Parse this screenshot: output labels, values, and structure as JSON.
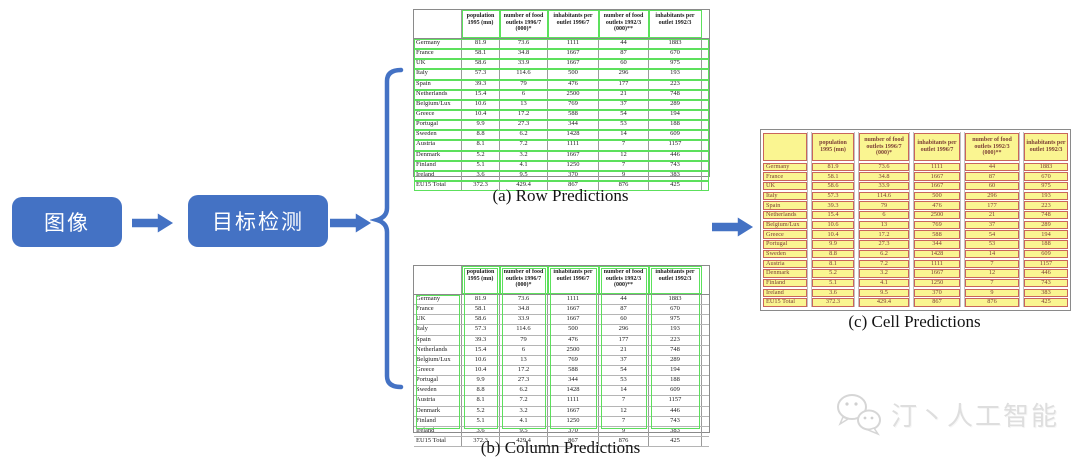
{
  "pipeline": {
    "input_label": "图像",
    "detector_label": "目标检测"
  },
  "tables": {
    "headers": [
      "",
      "population 1995 (mn)",
      "number of food outlets 1996/7 (000)*",
      "inhabitants per outlet 1996/7",
      "number of food outlets 1992/3 (000)**",
      "inhabitants per outlet 1992/3"
    ],
    "rows": [
      [
        "Germany",
        "81.9",
        "73.6",
        "1111",
        "44",
        "1883"
      ],
      [
        "France",
        "58.1",
        "34.8",
        "1667",
        "87",
        "670"
      ],
      [
        "UK",
        "58.6",
        "33.9",
        "1667",
        "60",
        "975"
      ],
      [
        "Italy",
        "57.3",
        "114.6",
        "500",
        "296",
        "193"
      ],
      [
        "Spain",
        "39.3",
        "79",
        "476",
        "177",
        "223"
      ],
      [
        "Netherlands",
        "15.4",
        "6",
        "2500",
        "21",
        "748"
      ],
      [
        "Belgium/Lux",
        "10.6",
        "13",
        "769",
        "37",
        "289"
      ],
      [
        "Greece",
        "10.4",
        "17.2",
        "588",
        "54",
        "194"
      ],
      [
        "Portugal",
        "9.9",
        "27.3",
        "344",
        "53",
        "188"
      ],
      [
        "Sweden",
        "8.8",
        "6.2",
        "1428",
        "14",
        "609"
      ],
      [
        "Austria",
        "8.1",
        "7.2",
        "1111",
        "7",
        "1157"
      ],
      [
        "Denmark",
        "5.2",
        "3.2",
        "1667",
        "12",
        "446"
      ],
      [
        "Finland",
        "5.1",
        "4.1",
        "1250",
        "7",
        "743"
      ],
      [
        "Ireland",
        "3.6",
        "9.5",
        "370",
        "9",
        "383"
      ],
      [
        "EU15 Total",
        "372.3",
        "429.4",
        "867",
        "876",
        "425"
      ]
    ]
  },
  "captions": {
    "row": "(a) Row Predictions",
    "column": "(b) Column Predictions",
    "cell": "(c) Cell Predictions"
  },
  "watermark": {
    "icon": "wechat-bubbles-icon",
    "text": "汀丶人工智能"
  },
  "colors": {
    "accent_blue": "#4472C4",
    "prediction_box_green": "#5CE05C",
    "cell_fill_yellow": "#FAF591",
    "cell_border_red": "#C9655C"
  }
}
